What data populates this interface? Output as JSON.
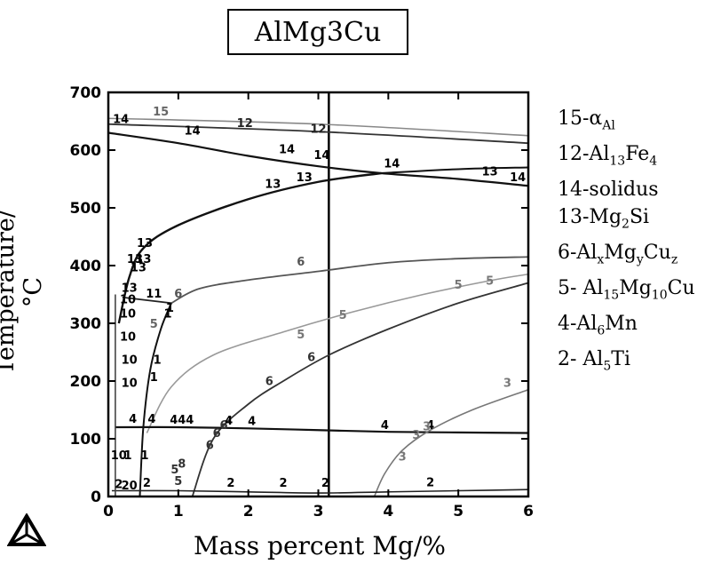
{
  "chart_data": {
    "type": "line",
    "title": "AlMg3Cu",
    "xlabel": "Mass percent Mg/%",
    "ylabel": "Temperature/°C",
    "xlim": [
      0,
      6
    ],
    "ylim": [
      0,
      700
    ],
    "xticks": [
      0,
      1,
      2,
      3,
      4,
      5,
      6
    ],
    "yticks": [
      0,
      100,
      200,
      300,
      400,
      500,
      600,
      700
    ],
    "marker_line_x": 3.15,
    "grid": false,
    "legend_position": "right",
    "legend": [
      {
        "label": "15-α",
        "sub": "Al",
        "after": ""
      },
      {
        "label": "12-Al",
        "sub": "13",
        "after": "Fe",
        "sub2": "4"
      },
      {
        "label": "14-solidus",
        "sub": "",
        "after": ""
      },
      {
        "label": "13-Mg",
        "sub": "2",
        "after": "Si"
      },
      {
        "label": "6-Al",
        "sub": "x",
        "after": "Mg",
        "sub2": "y",
        "after2": "Cu",
        "sub3": "z"
      },
      {
        "label": "5- Al",
        "sub": "15",
        "after": "Mg",
        "sub2": "10",
        "after2": "Cu"
      },
      {
        "label": "4-Al",
        "sub": "6",
        "after": "Mn"
      },
      {
        "label": "2- Al",
        "sub": "5",
        "after": "Ti"
      }
    ],
    "series": [
      {
        "name": "15",
        "color": "#888888",
        "width": 1.6,
        "points": [
          [
            0,
            655
          ],
          [
            3,
            645
          ],
          [
            6,
            625
          ]
        ]
      },
      {
        "name": "12",
        "color": "#333333",
        "width": 1.8,
        "points": [
          [
            0,
            645
          ],
          [
            3,
            632
          ],
          [
            6,
            612
          ]
        ]
      },
      {
        "name": "14",
        "color": "#111111",
        "width": 2.2,
        "points": [
          [
            0,
            630
          ],
          [
            1,
            612
          ],
          [
            2,
            590
          ],
          [
            3,
            572
          ],
          [
            3.9,
            560
          ],
          [
            5,
            550
          ],
          [
            6,
            538
          ]
        ]
      },
      {
        "name": "13",
        "color": "#111111",
        "width": 2.4,
        "points": [
          [
            0.15,
            300
          ],
          [
            0.3,
            380
          ],
          [
            0.5,
            430
          ],
          [
            1,
            470
          ],
          [
            2,
            515
          ],
          [
            3,
            545
          ],
          [
            3.9,
            560
          ]
        ]
      },
      {
        "name": "14",
        "color": "#111111",
        "width": 2.0,
        "points": [
          [
            3.9,
            560
          ],
          [
            5,
            567
          ],
          [
            6,
            570
          ]
        ]
      },
      {
        "name": "6",
        "color": "#555555",
        "width": 1.8,
        "points": [
          [
            0.9,
            335
          ],
          [
            1.3,
            360
          ],
          [
            2,
            375
          ],
          [
            3,
            390
          ],
          [
            4,
            405
          ],
          [
            5,
            412
          ],
          [
            6,
            415
          ]
        ]
      },
      {
        "name": "6",
        "color": "#222222",
        "width": 1.8,
        "points": [
          [
            0.2,
            345
          ],
          [
            0.9,
            335
          ]
        ]
      },
      {
        "name": "5",
        "color": "#999999",
        "width": 1.6,
        "points": [
          [
            0.55,
            110
          ],
          [
            0.9,
            190
          ],
          [
            1.5,
            245
          ],
          [
            2.5,
            285
          ],
          [
            3.5,
            320
          ],
          [
            4.5,
            350
          ],
          [
            5.5,
            375
          ],
          [
            6,
            385
          ]
        ]
      },
      {
        "name": "6",
        "color": "#333333",
        "width": 1.8,
        "points": [
          [
            1.2,
            0
          ],
          [
            1.5,
            100
          ],
          [
            2.0,
            160
          ],
          [
            2.5,
            200
          ],
          [
            3.15,
            245
          ],
          [
            4,
            290
          ],
          [
            5,
            335
          ],
          [
            6,
            370
          ]
        ]
      },
      {
        "name": "1",
        "color": "#111111",
        "width": 2.0,
        "points": [
          [
            0.45,
            0
          ],
          [
            0.5,
            120
          ],
          [
            0.6,
            220
          ],
          [
            0.75,
            290
          ],
          [
            0.9,
            335
          ]
        ]
      },
      {
        "name": "4",
        "color": "#111111",
        "width": 2.2,
        "points": [
          [
            0.1,
            120
          ],
          [
            1,
            120
          ],
          [
            2,
            118
          ],
          [
            3,
            115
          ],
          [
            4,
            112
          ],
          [
            5,
            111
          ],
          [
            6,
            110
          ]
        ]
      },
      {
        "name": "3",
        "color": "#777777",
        "width": 1.6,
        "points": [
          [
            3.8,
            0
          ],
          [
            3.95,
            40
          ],
          [
            4.2,
            80
          ],
          [
            4.6,
            115
          ],
          [
            5.2,
            150
          ],
          [
            6,
            185
          ]
        ]
      },
      {
        "name": "2",
        "color": "#222222",
        "width": 1.6,
        "points": [
          [
            0.05,
            10
          ],
          [
            1,
            10
          ],
          [
            2,
            8
          ],
          [
            3,
            6
          ],
          [
            4,
            8
          ],
          [
            5,
            10
          ],
          [
            6,
            12
          ]
        ]
      },
      {
        "name": "10",
        "color": "#444444",
        "width": 1.6,
        "points": [
          [
            0.1,
            350
          ],
          [
            0.1,
            0
          ]
        ]
      }
    ],
    "annotations": [
      {
        "text": "15",
        "x": 0.75,
        "y": 660,
        "color": "#666666"
      },
      {
        "text": "12",
        "x": 1.95,
        "y": 640,
        "color": "#222222"
      },
      {
        "text": "12",
        "x": 3.0,
        "y": 630,
        "color": "#222222"
      },
      {
        "text": "14",
        "x": 0.18,
        "y": 647,
        "color": "#000000"
      },
      {
        "text": "14",
        "x": 1.2,
        "y": 627,
        "color": "#000000"
      },
      {
        "text": "14",
        "x": 2.55,
        "y": 595,
        "color": "#000000"
      },
      {
        "text": "14",
        "x": 3.05,
        "y": 585,
        "color": "#000000"
      },
      {
        "text": "14",
        "x": 4.05,
        "y": 570,
        "color": "#000000"
      },
      {
        "text": "13",
        "x": 5.45,
        "y": 556,
        "color": "#000000"
      },
      {
        "text": "14",
        "x": 5.85,
        "y": 546,
        "color": "#000000"
      },
      {
        "text": "13",
        "x": 2.35,
        "y": 535,
        "color": "#000000"
      },
      {
        "text": "13",
        "x": 2.8,
        "y": 546,
        "color": "#000000"
      },
      {
        "text": "13",
        "x": 0.52,
        "y": 432,
        "color": "#000000"
      },
      {
        "text": "13",
        "x": 0.38,
        "y": 405,
        "color": "#000000"
      },
      {
        "text": "13",
        "x": 0.5,
        "y": 405,
        "color": "#000000"
      },
      {
        "text": "13",
        "x": 0.43,
        "y": 390,
        "color": "#000000"
      },
      {
        "text": "13",
        "x": 0.3,
        "y": 355,
        "color": "#000000"
      },
      {
        "text": "6",
        "x": 2.75,
        "y": 400,
        "color": "#555555"
      },
      {
        "text": "11",
        "x": 0.65,
        "y": 345,
        "color": "#000000"
      },
      {
        "text": "6",
        "x": 1.0,
        "y": 345,
        "color": "#555555"
      },
      {
        "text": "1",
        "x": 0.88,
        "y": 320,
        "color": "#000000"
      },
      {
        "text": "1",
        "x": 0.85,
        "y": 310,
        "color": "#000000"
      },
      {
        "text": "1",
        "x": 0.7,
        "y": 230,
        "color": "#000000"
      },
      {
        "text": "5",
        "x": 0.65,
        "y": 292,
        "color": "#666666"
      },
      {
        "text": "5",
        "x": 5.0,
        "y": 360,
        "color": "#777777"
      },
      {
        "text": "5",
        "x": 5.45,
        "y": 367,
        "color": "#777777"
      },
      {
        "text": "5",
        "x": 3.35,
        "y": 308,
        "color": "#777777"
      },
      {
        "text": "5",
        "x": 2.75,
        "y": 274,
        "color": "#777777"
      },
      {
        "text": "6",
        "x": 2.9,
        "y": 235,
        "color": "#333333"
      },
      {
        "text": "6",
        "x": 2.3,
        "y": 193,
        "color": "#333333"
      },
      {
        "text": "6",
        "x": 1.65,
        "y": 117,
        "color": "#333333"
      },
      {
        "text": "6",
        "x": 1.55,
        "y": 103,
        "color": "#333333"
      },
      {
        "text": "6",
        "x": 1.45,
        "y": 82,
        "color": "#333333"
      },
      {
        "text": "4",
        "x": 0.35,
        "y": 128,
        "color": "#000000"
      },
      {
        "text": "4",
        "x": 0.62,
        "y": 128,
        "color": "#000000"
      },
      {
        "text": "444",
        "x": 1.05,
        "y": 126,
        "color": "#000000"
      },
      {
        "text": "4",
        "x": 1.72,
        "y": 125,
        "color": "#000000"
      },
      {
        "text": "4",
        "x": 2.05,
        "y": 124,
        "color": "#000000"
      },
      {
        "text": "4",
        "x": 3.95,
        "y": 117,
        "color": "#000000"
      },
      {
        "text": "4",
        "x": 4.6,
        "y": 117,
        "color": "#000000"
      },
      {
        "text": "3",
        "x": 5.7,
        "y": 190,
        "color": "#777777"
      },
      {
        "text": "3",
        "x": 4.55,
        "y": 115,
        "color": "#777777"
      },
      {
        "text": "3",
        "x": 4.4,
        "y": 100,
        "color": "#777777"
      },
      {
        "text": "3",
        "x": 4.2,
        "y": 62,
        "color": "#777777"
      },
      {
        "text": "1",
        "x": 0.65,
        "y": 200,
        "color": "#000000"
      },
      {
        "text": "1",
        "x": 0.52,
        "y": 65,
        "color": "#000000"
      },
      {
        "text": "1",
        "x": 0.28,
        "y": 65,
        "color": "#000000"
      },
      {
        "text": "10",
        "x": 0.3,
        "y": 190,
        "color": "#000000"
      },
      {
        "text": "10",
        "x": 0.3,
        "y": 230,
        "color": "#000000"
      },
      {
        "text": "10",
        "x": 0.28,
        "y": 270,
        "color": "#000000"
      },
      {
        "text": "10",
        "x": 0.28,
        "y": 310,
        "color": "#000000"
      },
      {
        "text": "10",
        "x": 0.15,
        "y": 65,
        "color": "#000000"
      },
      {
        "text": "10",
        "x": 0.28,
        "y": 335,
        "color": "#000000"
      },
      {
        "text": "2",
        "x": 1.75,
        "y": 17,
        "color": "#000000"
      },
      {
        "text": "2",
        "x": 2.5,
        "y": 17,
        "color": "#000000"
      },
      {
        "text": "2",
        "x": 3.1,
        "y": 17,
        "color": "#000000"
      },
      {
        "text": "2",
        "x": 4.6,
        "y": 18,
        "color": "#000000"
      },
      {
        "text": "2",
        "x": 0.15,
        "y": 15,
        "color": "#000000"
      },
      {
        "text": "20",
        "x": 0.3,
        "y": 12,
        "color": "#000000"
      },
      {
        "text": "2",
        "x": 0.55,
        "y": 17,
        "color": "#000000"
      },
      {
        "text": "5",
        "x": 0.95,
        "y": 40,
        "color": "#333333"
      },
      {
        "text": "5",
        "x": 1.0,
        "y": 20,
        "color": "#333333"
      },
      {
        "text": "8",
        "x": 1.05,
        "y": 50,
        "color": "#333333"
      }
    ]
  }
}
